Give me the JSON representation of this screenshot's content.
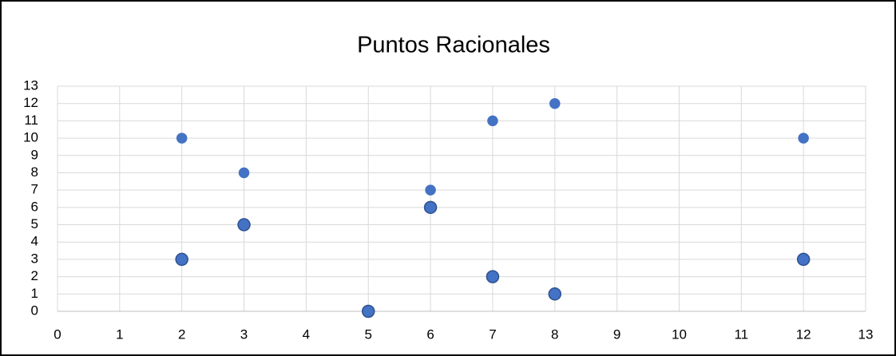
{
  "chart_data": {
    "type": "scatter",
    "title": "Puntos Racionales",
    "series": [
      {
        "color": "#4472c4",
        "edge": "#4472c4",
        "marker_size": 6,
        "x": [
          2,
          3,
          6,
          7,
          8,
          12
        ],
        "values": [
          10,
          8,
          7,
          11,
          12,
          10
        ]
      },
      {
        "color": "#4472c4",
        "edge": "#2f528f",
        "marker_size": 7.5,
        "x": [
          2,
          3,
          6,
          7,
          8,
          5,
          12
        ],
        "values": [
          3,
          5,
          6,
          2,
          1,
          0,
          3
        ]
      }
    ],
    "xlim": [
      0,
      13
    ],
    "xticks": [
      0,
      1,
      2,
      3,
      4,
      5,
      6,
      7,
      8,
      9,
      10,
      11,
      12,
      13
    ],
    "ylim": [
      0,
      13
    ],
    "yticks": [
      0,
      1,
      2,
      3,
      4,
      5,
      6,
      7,
      8,
      9,
      10,
      11,
      12,
      13
    ],
    "grid": true
  }
}
